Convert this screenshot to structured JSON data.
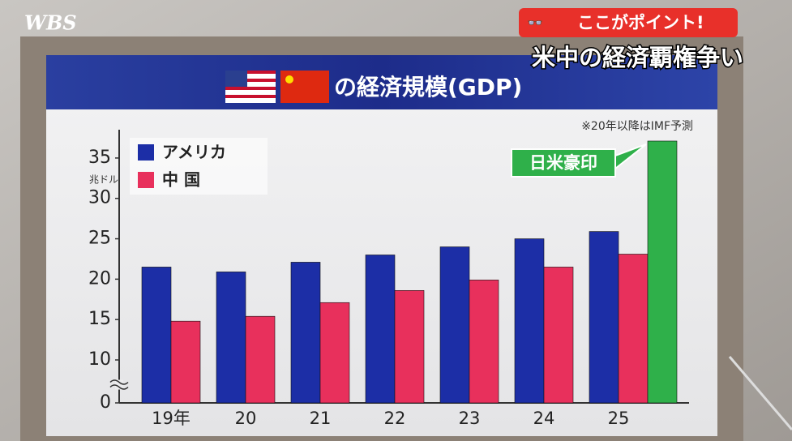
{
  "channel": "WBS",
  "caption": {
    "label": "ここがポイント!",
    "headline": "米中の経済覇権争い"
  },
  "chart_data": {
    "type": "bar",
    "title": "の経済規模(GDP)",
    "note": "※20年以降はIMF予測",
    "y_label": "兆ドル",
    "categories": [
      "19年",
      "20",
      "21",
      "22",
      "23",
      "24",
      "25"
    ],
    "series": [
      {
        "name": "アメリカ",
        "color": "#1c2ea6",
        "values": [
          21.5,
          20.9,
          22.1,
          23.0,
          24.0,
          25.0,
          25.9
        ]
      },
      {
        "name": "中 国",
        "color": "#e8305c",
        "values": [
          14.8,
          15.4,
          17.1,
          18.6,
          19.9,
          21.5,
          23.1
        ]
      },
      {
        "name": "日米豪印",
        "color": "#2fb04a",
        "values": [
          null,
          null,
          null,
          null,
          null,
          null,
          37.1
        ]
      }
    ],
    "ylim": [
      0,
      37.5
    ],
    "yticks": [
      0,
      10,
      15,
      20,
      25,
      30,
      35
    ],
    "axis_break": [
      0,
      10
    ],
    "grid": false
  }
}
